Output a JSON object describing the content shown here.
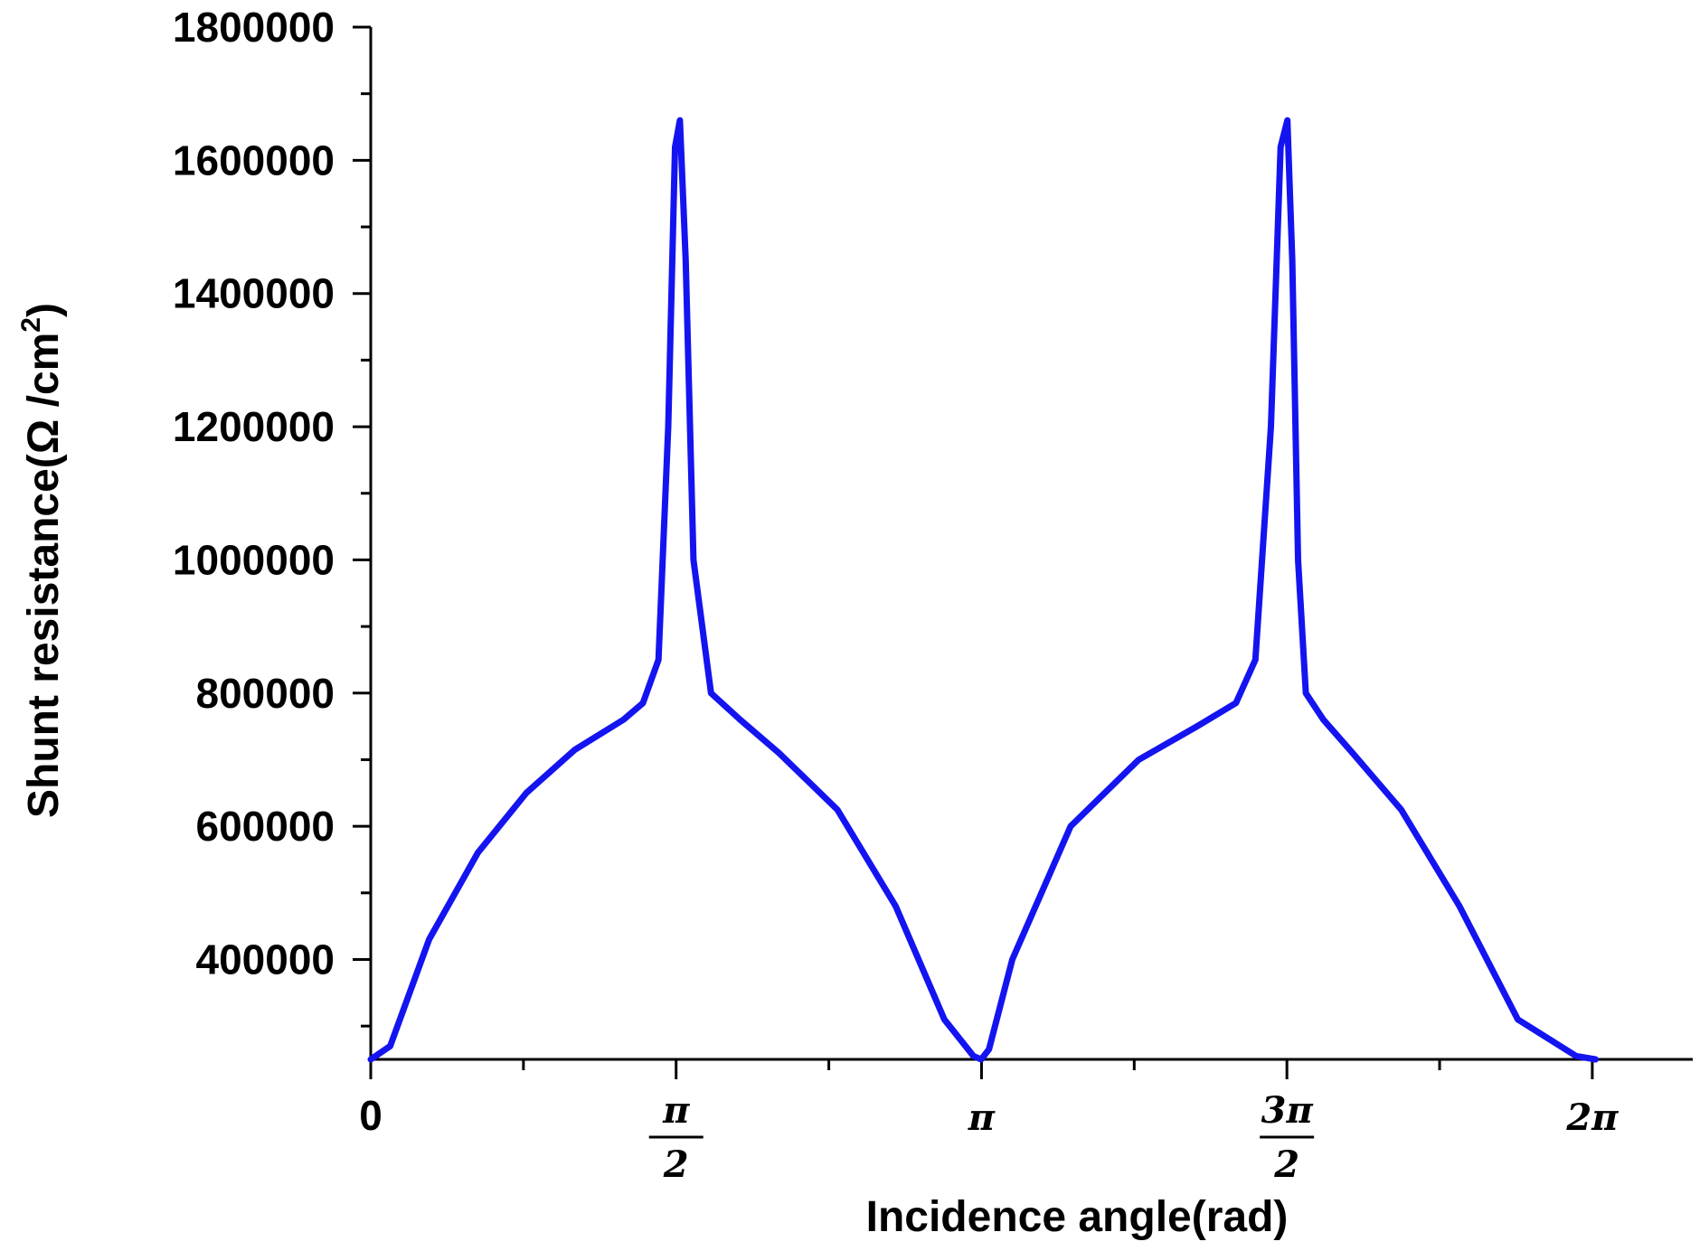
{
  "chart_data": {
    "type": "line",
    "title": "",
    "xlabel": "Incidence angle(rad)",
    "ylabel_main": "Shunt resistance(Ω /cm",
    "ylabel_sup": "2",
    "ylabel_close": ")",
    "xlim": [
      0,
      6.8
    ],
    "ylim": [
      250000,
      1800000
    ],
    "x_ticks": [
      {
        "value": 0,
        "label": "0",
        "fraction": false
      },
      {
        "value": 1.5708,
        "num": "π",
        "den": "2",
        "fraction": true
      },
      {
        "value": 3.1416,
        "label": "π",
        "fraction": false
      },
      {
        "value": 4.7124,
        "num": "3π",
        "den": "2",
        "fraction": true
      },
      {
        "value": 6.2832,
        "label": "2π",
        "fraction": false
      }
    ],
    "y_ticks": [
      {
        "value": 400000,
        "label": "400000"
      },
      {
        "value": 600000,
        "label": "600000"
      },
      {
        "value": 800000,
        "label": "800000"
      },
      {
        "value": 1000000,
        "label": "1000000"
      },
      {
        "value": 1200000,
        "label": "1200000"
      },
      {
        "value": 1400000,
        "label": "1400000"
      },
      {
        "value": 1600000,
        "label": "1600000"
      },
      {
        "value": 1800000,
        "label": "1800000"
      }
    ],
    "grid": false,
    "legend": "none",
    "series": [
      {
        "color": "#1414f0",
        "x": [
          0.0,
          0.1,
          0.3,
          0.55,
          0.8,
          1.05,
          1.3,
          1.4,
          1.48,
          1.53,
          1.565,
          1.59,
          1.62,
          1.66,
          1.75,
          1.9,
          2.1,
          2.4,
          2.7,
          2.95,
          3.1,
          3.14,
          3.18,
          3.3,
          3.6,
          3.95,
          4.25,
          4.45,
          4.55,
          4.63,
          4.68,
          4.715,
          4.74,
          4.77,
          4.81,
          4.9,
          5.05,
          5.3,
          5.6,
          5.9,
          6.2,
          6.3
        ],
        "y": [
          250000,
          270000,
          430000,
          560000,
          650000,
          715000,
          760000,
          785000,
          850000,
          1200000,
          1620000,
          1660000,
          1450000,
          1000000,
          800000,
          760000,
          710000,
          625000,
          480000,
          310000,
          255000,
          250000,
          265000,
          400000,
          600000,
          700000,
          750000,
          785000,
          850000,
          1200000,
          1620000,
          1660000,
          1450000,
          1000000,
          800000,
          760000,
          710000,
          625000,
          480000,
          310000,
          255000,
          250000
        ]
      }
    ]
  }
}
